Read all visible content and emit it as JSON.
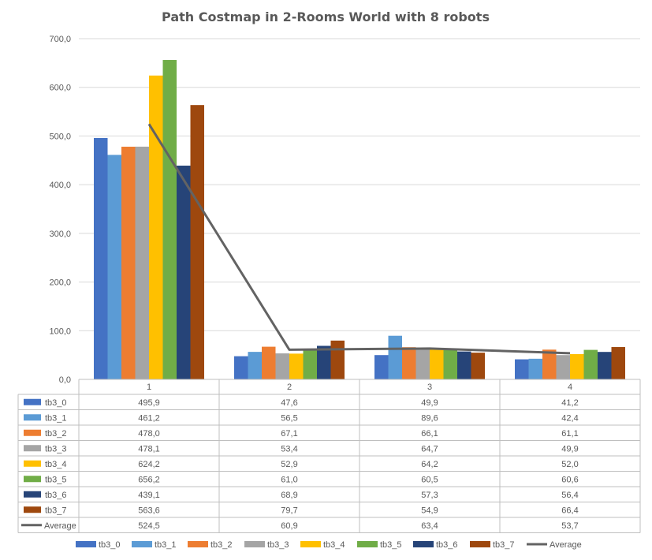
{
  "chart_data": {
    "type": "bar",
    "title": "Path Costmap in 2-Rooms World with 8 robots",
    "xlabel": "",
    "ylabel": "",
    "ylim": [
      0,
      700
    ],
    "yticks": [
      "0,0",
      "100,0",
      "200,0",
      "300,0",
      "400,0",
      "500,0",
      "600,0",
      "700,0"
    ],
    "grid": true,
    "legend": "bottom",
    "categories": [
      "1",
      "2",
      "3",
      "4"
    ],
    "series": [
      {
        "name": "tb3_0",
        "color": "#4472C4",
        "values": [
          495.9,
          47.6,
          49.9,
          41.2
        ],
        "labels": [
          "495,9",
          "47,6",
          "49,9",
          "41,2"
        ]
      },
      {
        "name": "tb3_1",
        "color": "#5B9BD5",
        "values": [
          461.2,
          56.5,
          89.6,
          42.4
        ],
        "labels": [
          "461,2",
          "56,5",
          "89,6",
          "42,4"
        ]
      },
      {
        "name": "tb3_2",
        "color": "#ED7D31",
        "values": [
          478.0,
          67.1,
          66.1,
          61.1
        ],
        "labels": [
          "478,0",
          "67,1",
          "66,1",
          "61,1"
        ]
      },
      {
        "name": "tb3_3",
        "color": "#A5A5A5",
        "values": [
          478.1,
          53.4,
          64.7,
          49.9
        ],
        "labels": [
          "478,1",
          "53,4",
          "64,7",
          "49,9"
        ]
      },
      {
        "name": "tb3_4",
        "color": "#FFC000",
        "values": [
          624.2,
          52.9,
          64.2,
          52.0
        ],
        "labels": [
          "624,2",
          "52,9",
          "64,2",
          "52,0"
        ]
      },
      {
        "name": "tb3_5",
        "color": "#70AD47",
        "values": [
          656.2,
          61.0,
          60.5,
          60.6
        ],
        "labels": [
          "656,2",
          "61,0",
          "60,5",
          "60,6"
        ]
      },
      {
        "name": "tb3_6",
        "color": "#264478",
        "values": [
          439.1,
          68.9,
          57.3,
          56.4
        ],
        "labels": [
          "439,1",
          "68,9",
          "57,3",
          "56,4"
        ]
      },
      {
        "name": "tb3_7",
        "color": "#9E480E",
        "values": [
          563.6,
          79.7,
          54.9,
          66.4
        ],
        "labels": [
          "563,6",
          "79,7",
          "54,9",
          "66,4"
        ]
      }
    ],
    "line_series": {
      "name": "Average",
      "color": "#636363",
      "values": [
        524.5,
        60.9,
        63.4,
        53.7
      ],
      "labels": [
        "524,5",
        "60,9",
        "63,4",
        "53,7"
      ]
    }
  }
}
